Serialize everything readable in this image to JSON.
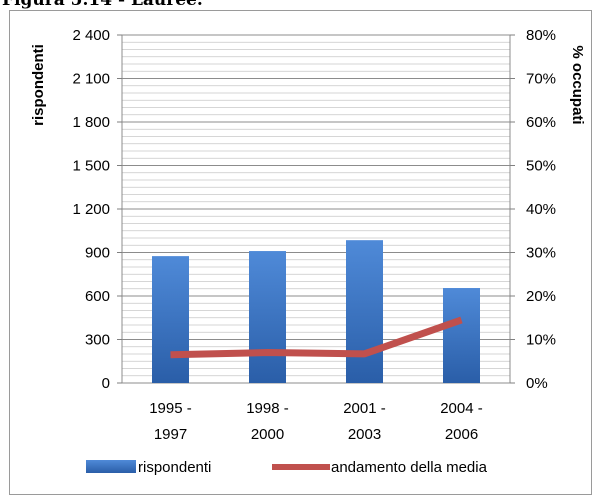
{
  "figure_title": "Figura 5.14 - Lauree.",
  "chart_data": {
    "type": "bar",
    "categories": [
      [
        "1995 -",
        "1997"
      ],
      [
        "1998 -",
        "2000"
      ],
      [
        "2001 -",
        "2003"
      ],
      [
        "2004 -",
        "2006"
      ]
    ],
    "series": [
      {
        "name": "rispondenti",
        "type": "bar",
        "axis": "left",
        "values": [
          875,
          910,
          985,
          655
        ],
        "color": "#3a73c4"
      },
      {
        "name": "andamento della media",
        "type": "line",
        "axis": "right",
        "values": [
          6.5,
          7.0,
          6.7,
          14.5
        ],
        "color": "#c0504d"
      }
    ],
    "ylabel": "rispondenti",
    "y2label": "% occupati",
    "ylim": [
      0,
      2400
    ],
    "yticks": [
      0,
      300,
      600,
      900,
      1200,
      1500,
      1800,
      2100,
      2400
    ],
    "yticklabels": [
      "0",
      "300",
      "600",
      "900",
      "1 200",
      "1 500",
      "1 800",
      "2 100",
      "2 400"
    ],
    "y2lim": [
      0,
      80
    ],
    "y2ticks": [
      0,
      10,
      20,
      30,
      40,
      50,
      60,
      70,
      80
    ],
    "y2ticklabels": [
      "0%",
      "10%",
      "20%",
      "30%",
      "40%",
      "50%",
      "60%",
      "70%",
      "80%"
    ],
    "grid": true,
    "legend_position": "bottom"
  }
}
